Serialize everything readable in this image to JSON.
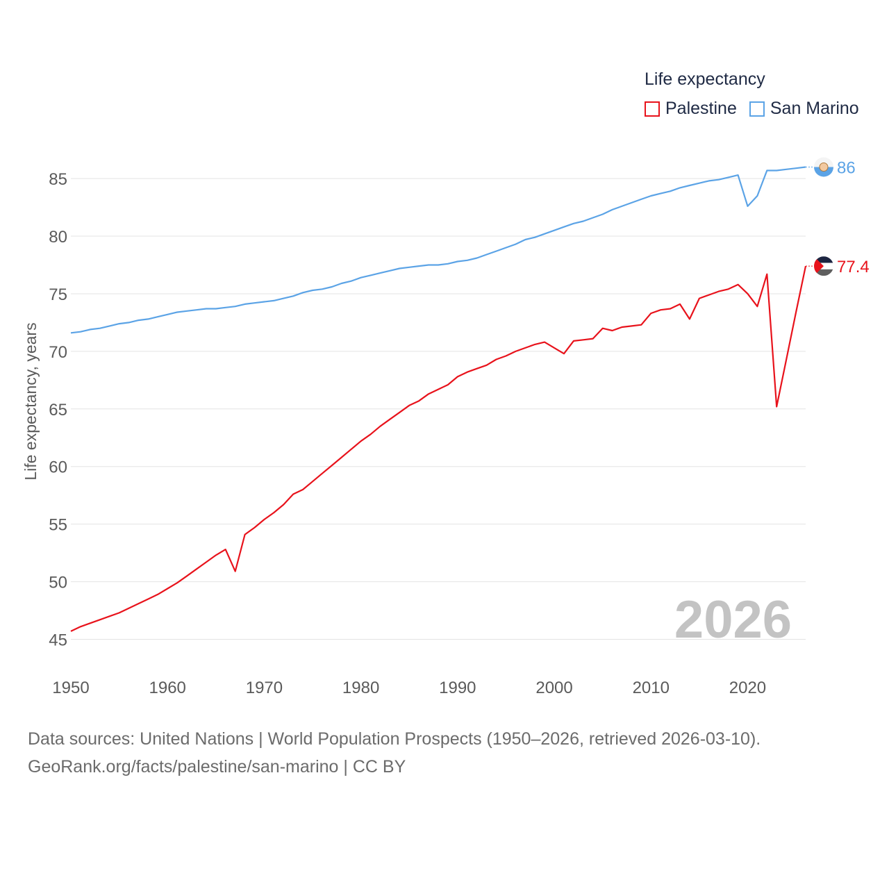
{
  "legend": {
    "title": "Life expectancy",
    "items": [
      {
        "label": "Palestine",
        "color": "#e8121b"
      },
      {
        "label": "San Marino",
        "color": "#5ba3e6"
      }
    ]
  },
  "footer": {
    "line1": "Data sources: United Nations | World Population Prospects (1950–2026, retrieved 2026-03-10).",
    "line2": "GeoRank.org/facts/palestine/san-marino | CC BY"
  },
  "chart_data": {
    "type": "line",
    "title": "Life expectancy",
    "xlabel": "",
    "ylabel": "Life expectancy, years",
    "year_label": "2026",
    "xlim": [
      1950,
      2026
    ],
    "ylim": [
      45,
      87
    ],
    "xticks": [
      1950,
      1960,
      1970,
      1980,
      1990,
      2000,
      2010,
      2020
    ],
    "yticks": [
      45,
      50,
      55,
      60,
      65,
      70,
      75,
      80,
      85
    ],
    "grid": true,
    "series": [
      {
        "name": "San Marino",
        "color": "#5ba3e6",
        "end_label": "86",
        "points": [
          [
            1950,
            71.6
          ],
          [
            1951,
            71.7
          ],
          [
            1952,
            71.9
          ],
          [
            1953,
            72.0
          ],
          [
            1954,
            72.2
          ],
          [
            1955,
            72.4
          ],
          [
            1956,
            72.5
          ],
          [
            1957,
            72.7
          ],
          [
            1958,
            72.8
          ],
          [
            1959,
            73.0
          ],
          [
            1960,
            73.2
          ],
          [
            1961,
            73.4
          ],
          [
            1962,
            73.5
          ],
          [
            1963,
            73.6
          ],
          [
            1964,
            73.7
          ],
          [
            1965,
            73.7
          ],
          [
            1966,
            73.8
          ],
          [
            1967,
            73.9
          ],
          [
            1968,
            74.1
          ],
          [
            1969,
            74.2
          ],
          [
            1970,
            74.3
          ],
          [
            1971,
            74.4
          ],
          [
            1972,
            74.6
          ],
          [
            1973,
            74.8
          ],
          [
            1974,
            75.1
          ],
          [
            1975,
            75.3
          ],
          [
            1976,
            75.4
          ],
          [
            1977,
            75.6
          ],
          [
            1978,
            75.9
          ],
          [
            1979,
            76.1
          ],
          [
            1980,
            76.4
          ],
          [
            1981,
            76.6
          ],
          [
            1982,
            76.8
          ],
          [
            1983,
            77.0
          ],
          [
            1984,
            77.2
          ],
          [
            1985,
            77.3
          ],
          [
            1986,
            77.4
          ],
          [
            1987,
            77.5
          ],
          [
            1988,
            77.5
          ],
          [
            1989,
            77.6
          ],
          [
            1990,
            77.8
          ],
          [
            1991,
            77.9
          ],
          [
            1992,
            78.1
          ],
          [
            1993,
            78.4
          ],
          [
            1994,
            78.7
          ],
          [
            1995,
            79.0
          ],
          [
            1996,
            79.3
          ],
          [
            1997,
            79.7
          ],
          [
            1998,
            79.9
          ],
          [
            1999,
            80.2
          ],
          [
            2000,
            80.5
          ],
          [
            2001,
            80.8
          ],
          [
            2002,
            81.1
          ],
          [
            2003,
            81.3
          ],
          [
            2004,
            81.6
          ],
          [
            2005,
            81.9
          ],
          [
            2006,
            82.3
          ],
          [
            2007,
            82.6
          ],
          [
            2008,
            82.9
          ],
          [
            2009,
            83.2
          ],
          [
            2010,
            83.5
          ],
          [
            2011,
            83.7
          ],
          [
            2012,
            83.9
          ],
          [
            2013,
            84.2
          ],
          [
            2014,
            84.4
          ],
          [
            2015,
            84.6
          ],
          [
            2016,
            84.8
          ],
          [
            2017,
            84.9
          ],
          [
            2018,
            85.1
          ],
          [
            2019,
            85.3
          ],
          [
            2020,
            82.6
          ],
          [
            2021,
            83.5
          ],
          [
            2022,
            85.7
          ],
          [
            2023,
            85.7
          ],
          [
            2024,
            85.8
          ],
          [
            2025,
            85.9
          ],
          [
            2026,
            86.0
          ]
        ]
      },
      {
        "name": "Palestine",
        "color": "#e8121b",
        "end_label": "77.4",
        "points": [
          [
            1950,
            45.7
          ],
          [
            1951,
            46.1
          ],
          [
            1952,
            46.4
          ],
          [
            1953,
            46.7
          ],
          [
            1954,
            47.0
          ],
          [
            1955,
            47.3
          ],
          [
            1956,
            47.7
          ],
          [
            1957,
            48.1
          ],
          [
            1958,
            48.5
          ],
          [
            1959,
            48.9
          ],
          [
            1960,
            49.4
          ],
          [
            1961,
            49.9
          ],
          [
            1962,
            50.5
          ],
          [
            1963,
            51.1
          ],
          [
            1964,
            51.7
          ],
          [
            1965,
            52.3
          ],
          [
            1966,
            52.8
          ],
          [
            1967,
            50.9
          ],
          [
            1968,
            54.1
          ],
          [
            1969,
            54.7
          ],
          [
            1970,
            55.4
          ],
          [
            1971,
            56.0
          ],
          [
            1972,
            56.7
          ],
          [
            1973,
            57.6
          ],
          [
            1974,
            58.0
          ],
          [
            1975,
            58.7
          ],
          [
            1976,
            59.4
          ],
          [
            1977,
            60.1
          ],
          [
            1978,
            60.8
          ],
          [
            1979,
            61.5
          ],
          [
            1980,
            62.2
          ],
          [
            1981,
            62.8
          ],
          [
            1982,
            63.5
          ],
          [
            1983,
            64.1
          ],
          [
            1984,
            64.7
          ],
          [
            1985,
            65.3
          ],
          [
            1986,
            65.7
          ],
          [
            1987,
            66.3
          ],
          [
            1988,
            66.7
          ],
          [
            1989,
            67.1
          ],
          [
            1990,
            67.8
          ],
          [
            1991,
            68.2
          ],
          [
            1992,
            68.5
          ],
          [
            1993,
            68.8
          ],
          [
            1994,
            69.3
          ],
          [
            1995,
            69.6
          ],
          [
            1996,
            70.0
          ],
          [
            1997,
            70.3
          ],
          [
            1998,
            70.6
          ],
          [
            1999,
            70.8
          ],
          [
            2000,
            70.3
          ],
          [
            2001,
            69.8
          ],
          [
            2002,
            70.9
          ],
          [
            2003,
            71.0
          ],
          [
            2004,
            71.1
          ],
          [
            2005,
            72.0
          ],
          [
            2006,
            71.8
          ],
          [
            2007,
            72.1
          ],
          [
            2008,
            72.2
          ],
          [
            2009,
            72.3
          ],
          [
            2010,
            73.3
          ],
          [
            2011,
            73.6
          ],
          [
            2012,
            73.7
          ],
          [
            2013,
            74.1
          ],
          [
            2014,
            72.8
          ],
          [
            2015,
            74.6
          ],
          [
            2016,
            74.9
          ],
          [
            2017,
            75.2
          ],
          [
            2018,
            75.4
          ],
          [
            2019,
            75.8
          ],
          [
            2020,
            75.0
          ],
          [
            2021,
            73.9
          ],
          [
            2022,
            76.7
          ],
          [
            2023,
            65.2
          ],
          [
            2024,
            69.3
          ],
          [
            2025,
            73.4
          ],
          [
            2026,
            77.4
          ]
        ]
      }
    ]
  }
}
